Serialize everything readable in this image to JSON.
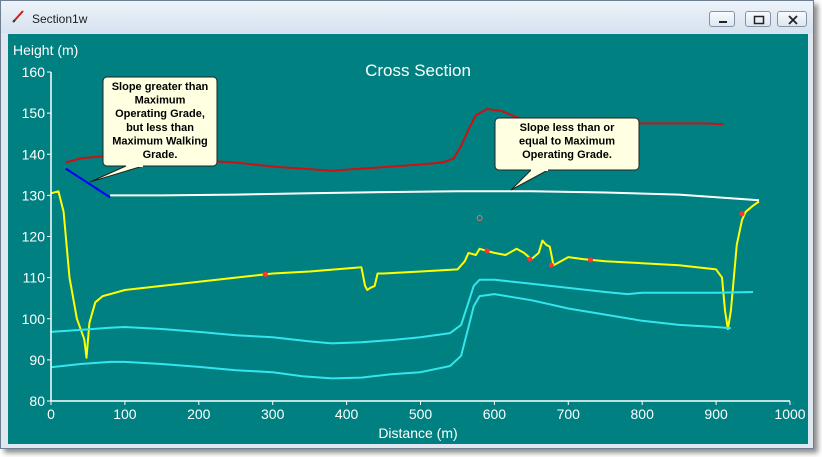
{
  "window": {
    "title": "Section1w",
    "icon": "pencil-icon",
    "controls": [
      "minimize-icon",
      "maximize-icon",
      "close-icon"
    ]
  },
  "colors": {
    "plot_background": "#008080",
    "axes": "#ffffff",
    "ground_series": "#ffff00",
    "red_series": "#cc1111",
    "white_series": "#ffffff",
    "blue_segment": "#0000ff",
    "cyan_series": "#33e6ee",
    "callout_fill": "#ffffe1"
  },
  "chart_data": {
    "type": "line",
    "title": "Cross Section",
    "xlabel": "Distance (m)",
    "ylabel": "Height (m)",
    "xlim": [
      0,
      1000
    ],
    "ylim": [
      80,
      160
    ],
    "xticks": [
      0,
      100,
      200,
      300,
      400,
      500,
      600,
      700,
      800,
      900,
      1000
    ],
    "yticks": [
      80,
      90,
      100,
      110,
      120,
      130,
      140,
      150,
      160
    ],
    "grid": false,
    "legend": "none",
    "annotations": [
      {
        "text": "Slope greater than\nMaximum\nOperating Grade,\nbut less than\nMaximum Walking\nGrade.",
        "x": 80,
        "y": 130
      },
      {
        "text": "Slope less than or\nequal to Maximum\nOperating Grade.",
        "x": 625,
        "y": 131
      }
    ],
    "series": [
      {
        "color": "#ffff00",
        "points": [
          [
            0,
            130.5
          ],
          [
            10,
            131
          ],
          [
            17,
            126
          ],
          [
            25,
            110
          ],
          [
            35,
            100
          ],
          [
            45,
            95
          ],
          [
            48,
            90.5
          ],
          [
            52,
            99
          ],
          [
            60,
            104
          ],
          [
            70,
            105.5
          ],
          [
            80,
            106
          ],
          [
            100,
            107
          ],
          [
            150,
            108
          ],
          [
            200,
            109
          ],
          [
            250,
            110
          ],
          [
            300,
            111
          ],
          [
            350,
            111.5
          ],
          [
            420,
            112.5
          ],
          [
            425,
            108
          ],
          [
            428,
            107
          ],
          [
            432,
            107.5
          ],
          [
            438,
            108
          ],
          [
            442,
            111
          ],
          [
            450,
            111
          ],
          [
            500,
            111.5
          ],
          [
            550,
            112
          ],
          [
            560,
            114
          ],
          [
            565,
            116
          ],
          [
            575,
            115.5
          ],
          [
            580,
            117
          ],
          [
            590,
            116.5
          ],
          [
            600,
            116
          ],
          [
            615,
            115.5
          ],
          [
            630,
            117
          ],
          [
            640,
            116
          ],
          [
            650,
            114.5
          ],
          [
            660,
            116
          ],
          [
            665,
            119
          ],
          [
            670,
            118
          ],
          [
            675,
            117.5
          ],
          [
            680,
            113
          ],
          [
            690,
            114
          ],
          [
            700,
            115
          ],
          [
            720,
            114.5
          ],
          [
            750,
            114
          ],
          [
            800,
            113.5
          ],
          [
            850,
            113
          ],
          [
            900,
            112
          ],
          [
            908,
            110
          ],
          [
            912,
            102
          ],
          [
            916,
            97.5
          ],
          [
            920,
            102
          ],
          [
            928,
            118
          ],
          [
            935,
            124
          ],
          [
            940,
            126
          ],
          [
            950,
            127.5
          ],
          [
            958,
            128.5
          ]
        ]
      },
      {
        "color": "#cc1111",
        "points": [
          [
            20,
            138
          ],
          [
            40,
            139
          ],
          [
            70,
            139.5
          ],
          [
            110,
            139.5
          ],
          [
            150,
            138.5
          ],
          [
            200,
            138.5
          ],
          [
            250,
            138
          ],
          [
            300,
            137
          ],
          [
            340,
            136.5
          ],
          [
            380,
            136
          ],
          [
            420,
            136.5
          ],
          [
            460,
            137
          ],
          [
            500,
            137.5
          ],
          [
            530,
            138
          ],
          [
            545,
            139
          ],
          [
            555,
            142
          ],
          [
            565,
            146
          ],
          [
            575,
            149.5
          ],
          [
            590,
            151
          ],
          [
            610,
            150.5
          ],
          [
            630,
            149
          ],
          [
            650,
            148
          ],
          [
            700,
            147.5
          ],
          [
            750,
            147.5
          ],
          [
            800,
            147.5
          ],
          [
            850,
            147.5
          ],
          [
            885,
            147.5
          ],
          [
            910,
            147.3
          ]
        ]
      },
      {
        "color": "#ffffff",
        "points": [
          [
            80,
            130
          ],
          [
            150,
            130
          ],
          [
            250,
            130.2
          ],
          [
            350,
            130.5
          ],
          [
            450,
            130.8
          ],
          [
            550,
            131
          ],
          [
            650,
            131
          ],
          [
            750,
            130.7
          ],
          [
            850,
            130.2
          ],
          [
            958,
            128.8
          ]
        ]
      },
      {
        "color": "#0000ff",
        "points": [
          [
            20,
            136.5
          ],
          [
            80,
            129.5
          ]
        ]
      },
      {
        "color": "#33e6ee",
        "points": [
          [
            0,
            96.8
          ],
          [
            40,
            97.3
          ],
          [
            80,
            97.8
          ],
          [
            100,
            98
          ],
          [
            150,
            97.5
          ],
          [
            200,
            96.8
          ],
          [
            250,
            96
          ],
          [
            300,
            95.5
          ],
          [
            350,
            94.5
          ],
          [
            380,
            94
          ],
          [
            420,
            94.3
          ],
          [
            460,
            94.8
          ],
          [
            500,
            95.5
          ],
          [
            540,
            96.5
          ],
          [
            555,
            98.5
          ],
          [
            565,
            104
          ],
          [
            572,
            108
          ],
          [
            580,
            109.5
          ],
          [
            600,
            109.5
          ],
          [
            650,
            108.5
          ],
          [
            700,
            107.5
          ],
          [
            750,
            106.5
          ],
          [
            780,
            106
          ],
          [
            800,
            106.3
          ],
          [
            850,
            106.3
          ],
          [
            900,
            106.3
          ],
          [
            950,
            106.5
          ]
        ]
      },
      {
        "color": "#33e6ee",
        "points": [
          [
            0,
            88.2
          ],
          [
            40,
            89
          ],
          [
            80,
            89.5
          ],
          [
            100,
            89.5
          ],
          [
            150,
            89
          ],
          [
            200,
            88.3
          ],
          [
            250,
            87.5
          ],
          [
            300,
            87
          ],
          [
            340,
            86
          ],
          [
            380,
            85.5
          ],
          [
            420,
            85.7
          ],
          [
            460,
            86.5
          ],
          [
            500,
            87
          ],
          [
            540,
            88.5
          ],
          [
            555,
            91
          ],
          [
            565,
            98
          ],
          [
            572,
            103
          ],
          [
            580,
            105.5
          ],
          [
            600,
            106
          ],
          [
            650,
            104.5
          ],
          [
            700,
            102.5
          ],
          [
            750,
            101
          ],
          [
            800,
            99.5
          ],
          [
            850,
            98.5
          ],
          [
            900,
            98
          ],
          [
            920,
            97.7
          ]
        ]
      }
    ],
    "markers": [
      {
        "x": 290,
        "y": 110.8,
        "color": "#ff3333",
        "style": "filled"
      },
      {
        "x": 590,
        "y": 116.5,
        "color": "#ff3333",
        "style": "filled"
      },
      {
        "x": 648,
        "y": 114.5,
        "color": "#ff3333",
        "style": "filled"
      },
      {
        "x": 677,
        "y": 113,
        "color": "#ff3333",
        "style": "filled"
      },
      {
        "x": 730,
        "y": 114.3,
        "color": "#ff3333",
        "style": "filled"
      },
      {
        "x": 935,
        "y": 125.5,
        "color": "#ff3333",
        "style": "filled"
      },
      {
        "x": 580,
        "y": 124.5,
        "color": "#ff6666",
        "style": "hollow"
      }
    ]
  }
}
